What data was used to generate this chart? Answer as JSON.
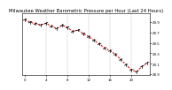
{
  "title": "Milwaukee Weather Barometric Pressure per Hour (Last 24 Hours)",
  "bg_color": "#ffffff",
  "line_color": "#cc0000",
  "marker_color": "#000000",
  "grid_color": "#999999",
  "hours": [
    0,
    1,
    2,
    3,
    4,
    5,
    6,
    7,
    8,
    9,
    10,
    11,
    12,
    13,
    14,
    15,
    16,
    17,
    18,
    19,
    20,
    21,
    22,
    23
  ],
  "pressure": [
    29.95,
    29.9,
    29.87,
    29.85,
    29.88,
    29.82,
    29.78,
    29.84,
    29.8,
    29.72,
    29.75,
    29.68,
    29.62,
    29.55,
    29.48,
    29.4,
    29.35,
    29.28,
    29.18,
    29.08,
    28.98,
    28.95,
    29.05,
    29.12
  ],
  "ylim": [
    28.88,
    30.08
  ],
  "yticks": [
    28.9,
    29.1,
    29.3,
    29.5,
    29.7,
    29.9
  ],
  "ytick_labels": [
    "28.9",
    "29.1",
    "29.3",
    "29.5",
    "29.7",
    "29.9"
  ],
  "xlim": [
    -0.5,
    23.5
  ],
  "xticks": [
    0,
    4,
    8,
    12,
    16,
    20
  ],
  "xtick_labels": [
    "0",
    "4",
    "8",
    "12",
    "16",
    "20"
  ],
  "title_fontsize": 3.8,
  "tick_fontsize": 2.8,
  "line_width": 0.7,
  "marker_size": 1.8,
  "grid_lw": 0.35
}
